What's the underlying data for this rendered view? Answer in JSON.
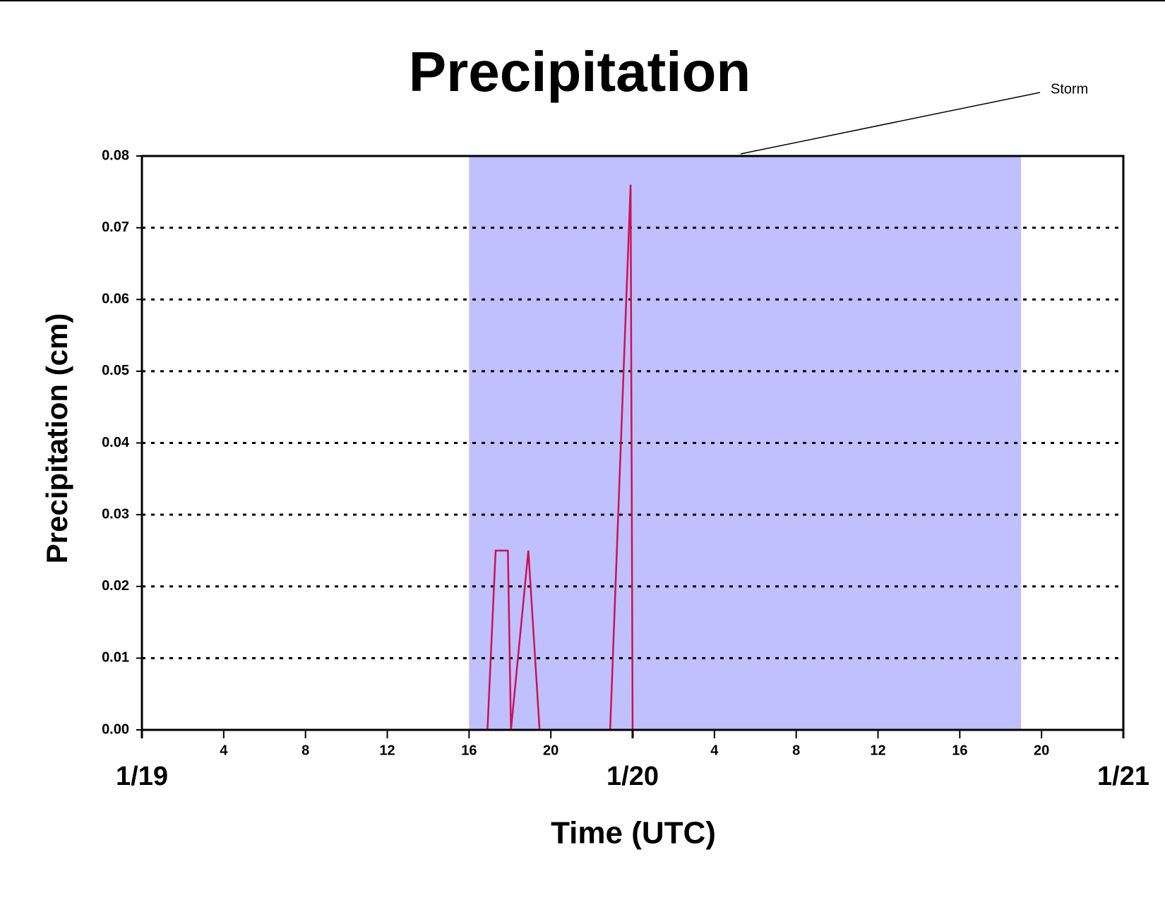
{
  "chart_data": {
    "type": "line",
    "title": "Precipitation",
    "x_label": "Time (UTC)",
    "y_label": "Precipitation (cm)",
    "x": [
      0,
      16.9,
      17.3,
      17.9,
      18.05,
      18.9,
      19.45,
      22.9,
      23.9,
      24,
      48
    ],
    "values": [
      0,
      0,
      0.025,
      0.025,
      0,
      0.025,
      0,
      0,
      0.076,
      0,
      0
    ],
    "color": "#cc1155",
    "xlim": [
      0,
      48
    ],
    "xticks": [
      4,
      8,
      12,
      16,
      20,
      {
        "value": 28,
        "label": "4"
      },
      {
        "value": 32,
        "label": "8"
      },
      {
        "value": 36,
        "label": "12"
      },
      {
        "value": 40,
        "label": "16"
      },
      {
        "value": 44,
        "label": "20"
      }
    ],
    "xticks_major": [
      {
        "value": 0,
        "label": "1/19"
      },
      {
        "value": 24,
        "label": "1/20"
      },
      {
        "value": 48,
        "label": "1/21"
      }
    ],
    "ylim": [
      0,
      0.08
    ],
    "yticks": [
      {
        "value": 0,
        "label": "0.00"
      },
      {
        "value": 0.01,
        "label": "0.01"
      },
      {
        "value": 0.02,
        "label": "0.02"
      },
      {
        "value": 0.03,
        "label": "0.03"
      },
      {
        "value": 0.04,
        "label": "0.04"
      },
      {
        "value": 0.05,
        "label": "0.05"
      },
      {
        "value": 0.06,
        "label": "0.06"
      },
      {
        "value": 0.07,
        "label": "0.07"
      },
      {
        "value": 0.08,
        "label": "0.08"
      }
    ],
    "grid": true,
    "annotation": {
      "text": "Storm",
      "span": [
        16,
        43
      ],
      "color": "#c0c0ff"
    }
  }
}
